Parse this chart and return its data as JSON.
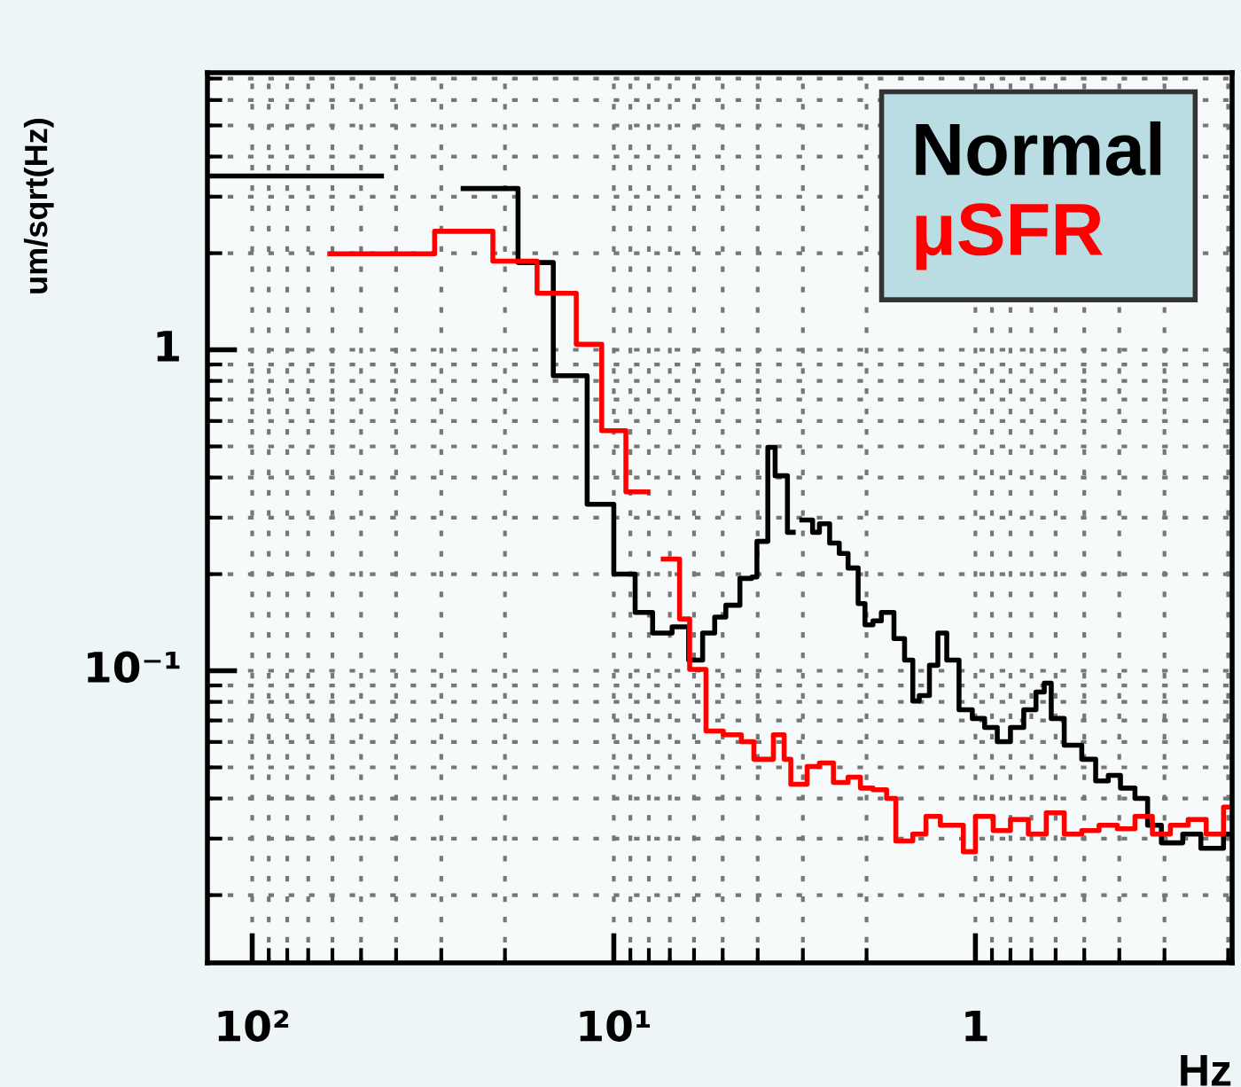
{
  "chart_data": {
    "type": "step",
    "xlabel": "Hz",
    "ylabel": "um/sqrt(Hz)",
    "log": "xy",
    "grid": true,
    "legend": "top right",
    "xlim": [
      133,
      0.195
    ],
    "ylim": [
      0.0123,
      7.3
    ],
    "xticks": [
      {
        "value": 100,
        "label": "10²"
      },
      {
        "value": 10,
        "label": "10¹"
      },
      1
    ],
    "yticks": [
      {
        "value": 0.1,
        "label": "10⁻¹"
      },
      1
    ],
    "series": [
      {
        "name": "Normal",
        "color": "#000000",
        "x": [
          133,
          43.9,
          26.1,
          18.4,
          14.7,
          11.85,
          10,
          8.73,
          7.81,
          6.9,
          6.21,
          5.68,
          5.26,
          4.9,
          4.48,
          4.15,
          4.02,
          3.75,
          3.58,
          3.31,
          3.19,
          3.02,
          2.82,
          2.7,
          2.53,
          2.38,
          2.25,
          2.11,
          2.02,
          1.92,
          1.82,
          1.68,
          1.57,
          1.49,
          1.43,
          1.34,
          1.27,
          1.2,
          1.11,
          1.02,
          0.943,
          0.87,
          0.8,
          0.735,
          0.68,
          0.645,
          0.617,
          0.568,
          0.508,
          0.465,
          0.429,
          0.397,
          0.362,
          0.334,
          0.306,
          0.267,
          0.238,
          0.206,
          0.196
        ],
        "values": [
          3.48,
          null,
          3.18,
          1.87,
          0.83,
          0.33,
          0.2,
          0.152,
          0.131,
          0.137,
          0.108,
          0.131,
          0.147,
          0.16,
          0.194,
          0.196,
          0.253,
          0.497,
          0.405,
          0.27,
          null,
          0.295,
          0.27,
          0.287,
          0.25,
          0.232,
          0.209,
          0.162,
          0.139,
          0.143,
          0.152,
          0.126,
          0.108,
          0.0805,
          0.0837,
          0.104,
          0.131,
          0.108,
          0.0756,
          0.071,
          0.0666,
          0.0601,
          0.0666,
          0.0756,
          0.0859,
          0.0915,
          0.071,
          0.0586,
          0.053,
          0.0454,
          0.0472,
          0.0431,
          0.04,
          0.033,
          0.0291,
          0.031,
          0.028,
          0.031,
          0.031
        ]
      },
      {
        "name": "μSFR",
        "color": "#ff0000",
        "x": [
          61,
          31.3,
          21.6,
          16.3,
          12.7,
          10.8,
          9.26,
          8.06,
          7.3,
          6.58,
          6.17,
          5.56,
          4.98,
          4.44,
          4.1,
          3.62,
          3.38,
          3.24,
          2.92,
          2.7,
          2.47,
          2.25,
          2.08,
          1.92,
          1.76,
          1.66,
          1.49,
          1.37,
          1.25,
          1.16,
          1.08,
          1.0,
          0.893,
          0.8,
          0.714,
          0.637,
          0.568,
          0.508,
          0.455,
          0.405,
          0.362,
          0.324,
          0.289,
          0.258,
          0.23,
          0.206,
          0.196
        ],
        "values": [
          1.99,
          2.34,
          1.89,
          1.5,
          1.04,
          0.56,
          0.361,
          null,
          0.223,
          0.145,
          0.101,
          0.0649,
          0.0632,
          0.0601,
          0.053,
          0.0632,
          0.053,
          0.0443,
          0.0503,
          0.0516,
          0.0449,
          0.0466,
          0.0431,
          0.0426,
          0.04,
          0.0295,
          0.031,
          0.0352,
          0.033,
          0.033,
          0.0273,
          0.0352,
          0.0318,
          0.0344,
          0.031,
          0.0361,
          0.031,
          0.0318,
          0.033,
          0.0322,
          0.0352,
          0.031,
          0.033,
          0.0344,
          0.031,
          0.0376,
          0.0376
        ]
      }
    ]
  }
}
